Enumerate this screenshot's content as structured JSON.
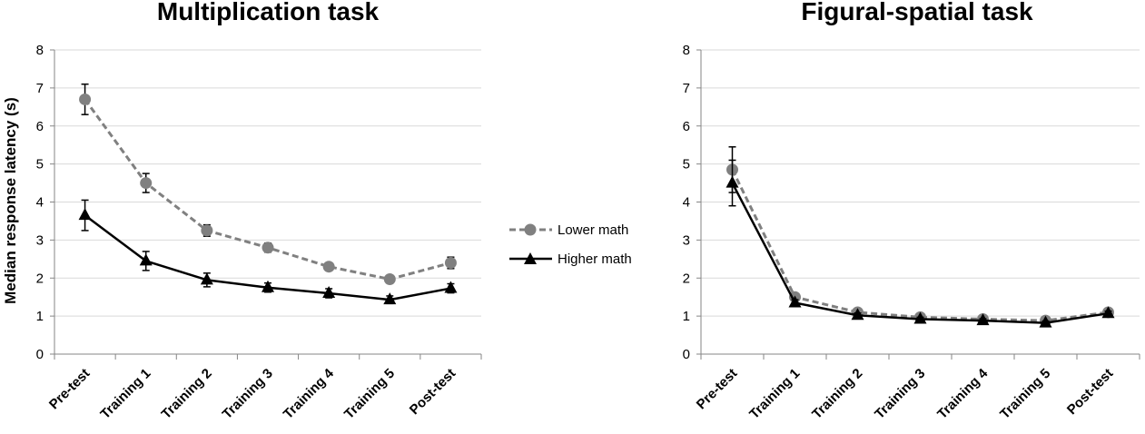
{
  "colors": {
    "lower": "#808080",
    "higher": "#000000",
    "grid": "#d9d9d9",
    "axis": "#868686"
  },
  "legend": {
    "items": [
      {
        "label": "Lower math",
        "style": "dashed",
        "marker": "circle",
        "color": "#808080"
      },
      {
        "label": "Higher math",
        "style": "solid",
        "marker": "triangle",
        "color": "#000000"
      }
    ]
  },
  "chart_data": [
    {
      "type": "line",
      "title": "Multiplication task",
      "ylabel": "Median response latency (s)",
      "ylim": [
        0,
        8
      ],
      "yticks": [
        "0",
        "1",
        "2",
        "3",
        "4",
        "5",
        "6",
        "7",
        "8"
      ],
      "grid": true,
      "categories": [
        "Pre-test",
        "Training 1",
        "Training 2",
        "Training 3",
        "Training 4",
        "Training 5",
        "Post-test"
      ],
      "series": [
        {
          "name": "Lower math",
          "values": [
            6.7,
            4.5,
            3.25,
            2.8,
            2.3,
            1.97,
            2.4
          ],
          "error": [
            0.4,
            0.25,
            0.15,
            0.12,
            0.1,
            0.1,
            0.15
          ]
        },
        {
          "name": "Higher math",
          "values": [
            3.65,
            2.45,
            1.95,
            1.75,
            1.6,
            1.43,
            1.73
          ],
          "error": [
            0.4,
            0.25,
            0.18,
            0.12,
            0.12,
            0.1,
            0.12
          ]
        }
      ]
    },
    {
      "type": "line",
      "title": "Figural-spatial task",
      "ylabel": "",
      "ylim": [
        0,
        8
      ],
      "yticks": [
        "0",
        "1",
        "2",
        "3",
        "4",
        "5",
        "6",
        "7",
        "8"
      ],
      "grid": true,
      "categories": [
        "Pre-test",
        "Training 1",
        "Training 2",
        "Training 3",
        "Training 4",
        "Training 5",
        "Post-test"
      ],
      "series": [
        {
          "name": "Lower math",
          "values": [
            4.85,
            1.5,
            1.1,
            0.97,
            0.92,
            0.88,
            1.1
          ],
          "error": [
            0.6,
            0.08,
            0.06,
            0.05,
            0.05,
            0.05,
            0.06
          ]
        },
        {
          "name": "Higher math",
          "values": [
            4.5,
            1.35,
            1.02,
            0.92,
            0.88,
            0.82,
            1.07
          ],
          "error": [
            0.6,
            0.08,
            0.06,
            0.05,
            0.05,
            0.05,
            0.06
          ]
        }
      ]
    }
  ]
}
